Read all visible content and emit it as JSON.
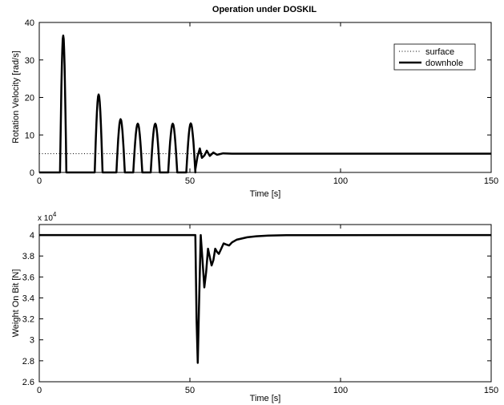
{
  "chart_data": [
    {
      "type": "line",
      "title": "Operation under DOSKIL",
      "xlabel": "Time [s]",
      "ylabel": "Rotation Velocity [rad/s]",
      "xlim": [
        0,
        150
      ],
      "ylim": [
        0,
        40
      ],
      "xticks": [
        "0",
        "50",
        "100",
        "150"
      ],
      "yticks": [
        "0",
        "10",
        "20",
        "30",
        "40"
      ],
      "grid": false,
      "legend": "top-right",
      "series": [
        {
          "name": "surface",
          "style": "dotted",
          "color": "#000000",
          "x": [
            0,
            150
          ],
          "y": [
            5,
            5
          ]
        },
        {
          "name": "downhole",
          "style": "solid",
          "color": "#000000",
          "pulses": [
            {
              "start": 6.9,
              "end": 9.0,
              "peak": 36.5
            },
            {
              "start": 18.4,
              "end": 21.0,
              "peak": 20.8
            },
            {
              "start": 25.6,
              "end": 28.4,
              "peak": 14.2
            },
            {
              "start": 31.2,
              "end": 34.2,
              "peak": 13.0
            },
            {
              "start": 37.0,
              "end": 40.0,
              "peak": 13.0
            },
            {
              "start": 42.8,
              "end": 45.8,
              "peak": 13.0
            },
            {
              "start": 48.8,
              "end": 51.8,
              "peak": 13.1
            }
          ],
          "x": [
            51.8,
            52.5,
            53.3,
            54.0,
            54.8,
            55.6,
            56.6,
            57.8,
            59.0,
            61.0,
            64.0,
            150
          ],
          "y": [
            0.8,
            4.2,
            6.4,
            3.9,
            4.5,
            5.8,
            4.4,
            5.3,
            4.7,
            5.1,
            5.0,
            5.0
          ]
        }
      ]
    },
    {
      "type": "line",
      "title": "",
      "xlabel": "Time [s]",
      "ylabel": "Weight On Bit [N]",
      "multiplier": "x 10",
      "multiplier_exponent": "4",
      "xlim": [
        0,
        150
      ],
      "ylim": [
        2.6,
        4.1
      ],
      "xticks": [
        "0",
        "50",
        "100",
        "150"
      ],
      "yticks": [
        "2.6",
        "2.8",
        "3",
        "3.2",
        "3.4",
        "3.6",
        "3.8",
        "4"
      ],
      "grid": false,
      "series": [
        {
          "style": "solid",
          "color": "#000000",
          "x": [
            0,
            51.8,
            52.2,
            52.6,
            53.0,
            53.6,
            54.2,
            54.8,
            55.4,
            56.0,
            56.6,
            57.2,
            57.8,
            58.4,
            59.0,
            59.6,
            60.4,
            61.2,
            62.0,
            63.0,
            64.0,
            65.5,
            67.0,
            69.0,
            72.0,
            76.0,
            82.0,
            150
          ],
          "y": [
            4.0,
            4.0,
            3.2,
            2.78,
            3.3,
            4.0,
            3.75,
            3.5,
            3.65,
            3.87,
            3.79,
            3.71,
            3.76,
            3.87,
            3.84,
            3.82,
            3.87,
            3.92,
            3.91,
            3.9,
            3.93,
            3.955,
            3.965,
            3.978,
            3.988,
            3.995,
            3.999,
            4.0
          ]
        }
      ]
    }
  ]
}
